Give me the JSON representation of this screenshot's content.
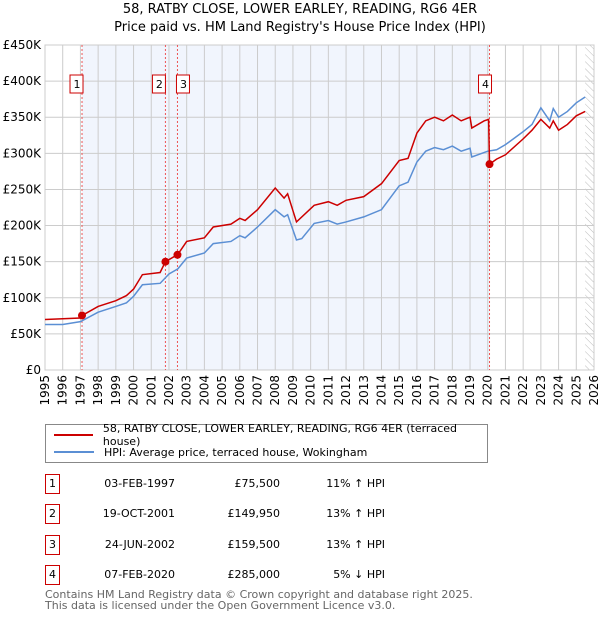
{
  "chart_data": {
    "type": "line",
    "title": "58, RATBY CLOSE, LOWER EARLEY, READING, RG6 4ER",
    "subtitle": "Price paid vs. HM Land Registry's House Price Index (HPI)",
    "xlim": [
      1995,
      2026
    ],
    "ylim": [
      0,
      450000
    ],
    "yticks": [
      {
        "v": 0,
        "l": "£0"
      },
      {
        "v": 50000,
        "l": "£50K"
      },
      {
        "v": 100000,
        "l": "£100K"
      },
      {
        "v": 150000,
        "l": "£150K"
      },
      {
        "v": 200000,
        "l": "£200K"
      },
      {
        "v": 250000,
        "l": "£250K"
      },
      {
        "v": 300000,
        "l": "£300K"
      },
      {
        "v": 350000,
        "l": "£350K"
      },
      {
        "v": 400000,
        "l": "£400K"
      },
      {
        "v": 450000,
        "l": "£450K"
      }
    ],
    "xticks": [
      "1995",
      "1996",
      "1997",
      "1998",
      "1999",
      "2000",
      "2001",
      "2002",
      "2003",
      "2004",
      "2005",
      "2006",
      "2007",
      "2008",
      "2009",
      "2010",
      "2011",
      "2012",
      "2013",
      "2014",
      "2015",
      "2016",
      "2017",
      "2018",
      "2019",
      "2020",
      "2021",
      "2022",
      "2023",
      "2024",
      "2025",
      "2026"
    ],
    "series": [
      {
        "name": "58, RATBY CLOSE, LOWER EARLEY, READING, RG6 4ER (terraced house)",
        "color": "#cc0000",
        "points": [
          [
            1995,
            70
          ],
          [
            1997,
            72
          ],
          [
            1997.1,
            75.5
          ],
          [
            1998,
            88
          ],
          [
            1999,
            96
          ],
          [
            1999.6,
            103
          ],
          [
            2000,
            112
          ],
          [
            2000.5,
            132
          ],
          [
            2001.5,
            135
          ],
          [
            2001.8,
            150
          ],
          [
            2002.5,
            160
          ],
          [
            2003,
            178
          ],
          [
            2004,
            183
          ],
          [
            2004.5,
            198
          ],
          [
            2005.5,
            202
          ],
          [
            2006,
            210
          ],
          [
            2006.3,
            207
          ],
          [
            2007,
            222
          ],
          [
            2008,
            252
          ],
          [
            2008.5,
            238
          ],
          [
            2008.7,
            244
          ],
          [
            2009.2,
            205
          ],
          [
            2010.2,
            228
          ],
          [
            2011,
            233
          ],
          [
            2011.5,
            228
          ],
          [
            2012,
            235
          ],
          [
            2013,
            240
          ],
          [
            2014,
            258
          ],
          [
            2015,
            290
          ],
          [
            2015.5,
            293
          ],
          [
            2016,
            328
          ],
          [
            2016.5,
            345
          ],
          [
            2017,
            350
          ],
          [
            2017.5,
            345
          ],
          [
            2018,
            353
          ],
          [
            2018.5,
            345
          ],
          [
            2019,
            350
          ],
          [
            2019.1,
            335
          ],
          [
            2019.8,
            345
          ],
          [
            2020.05,
            347
          ],
          [
            2020.1,
            285
          ],
          [
            2020.5,
            292
          ],
          [
            2021,
            298
          ],
          [
            2022,
            320
          ],
          [
            2022.5,
            332
          ],
          [
            2023,
            347
          ],
          [
            2023.5,
            335
          ],
          [
            2023.7,
            345
          ],
          [
            2024,
            332
          ],
          [
            2024.5,
            340
          ],
          [
            2025,
            352
          ],
          [
            2025.5,
            358
          ]
        ]
      },
      {
        "name": "HPI: Average price, terraced house, Wokingham",
        "color": "#5b8fd4",
        "points": [
          [
            1995,
            63
          ],
          [
            1996,
            63
          ],
          [
            1997,
            67
          ],
          [
            1998,
            80
          ],
          [
            1999,
            88
          ],
          [
            1999.6,
            93
          ],
          [
            2000,
            102
          ],
          [
            2000.5,
            118
          ],
          [
            2001.5,
            120
          ],
          [
            2002,
            133
          ],
          [
            2002.5,
            140
          ],
          [
            2003,
            155
          ],
          [
            2004,
            162
          ],
          [
            2004.5,
            175
          ],
          [
            2005.5,
            178
          ],
          [
            2006,
            186
          ],
          [
            2006.3,
            183
          ],
          [
            2007,
            198
          ],
          [
            2008,
            222
          ],
          [
            2008.5,
            212
          ],
          [
            2008.7,
            215
          ],
          [
            2009.2,
            180
          ],
          [
            2009.5,
            182
          ],
          [
            2010.2,
            203
          ],
          [
            2011,
            207
          ],
          [
            2011.5,
            202
          ],
          [
            2012,
            205
          ],
          [
            2013,
            212
          ],
          [
            2014,
            222
          ],
          [
            2015,
            255
          ],
          [
            2015.5,
            260
          ],
          [
            2016,
            288
          ],
          [
            2016.5,
            303
          ],
          [
            2017,
            308
          ],
          [
            2017.5,
            305
          ],
          [
            2018,
            310
          ],
          [
            2018.5,
            303
          ],
          [
            2019,
            307
          ],
          [
            2019.1,
            295
          ],
          [
            2020,
            303
          ],
          [
            2020.5,
            305
          ],
          [
            2021,
            312
          ],
          [
            2022,
            330
          ],
          [
            2022.5,
            340
          ],
          [
            2023,
            363
          ],
          [
            2023.5,
            345
          ],
          [
            2023.7,
            362
          ],
          [
            2024,
            350
          ],
          [
            2024.5,
            358
          ],
          [
            2025,
            370
          ],
          [
            2025.5,
            378
          ]
        ]
      }
    ],
    "sales": [
      {
        "n": "1",
        "x": 1997.09,
        "y": 75500
      },
      {
        "n": "2",
        "x": 2001.8,
        "y": 149950
      },
      {
        "n": "3",
        "x": 2002.48,
        "y": 159500
      },
      {
        "n": "4",
        "x": 2020.1,
        "y": 285000
      }
    ],
    "legend_placement": "bottom"
  },
  "header": {
    "title": "58, RATBY CLOSE, LOWER EARLEY, READING, RG6 4ER",
    "subtitle": "Price paid vs. HM Land Registry's House Price Index (HPI)"
  },
  "legend": {
    "property": "58, RATBY CLOSE, LOWER EARLEY, READING, RG6 4ER (terraced house)",
    "hpi": "HPI: Average price, terraced house, Wokingham"
  },
  "transactions": [
    {
      "n": "1",
      "date": "03-FEB-1997",
      "price": "£75,500",
      "hpi": "11% ↑ HPI"
    },
    {
      "n": "2",
      "date": "19-OCT-2001",
      "price": "£149,950",
      "hpi": "13% ↑ HPI"
    },
    {
      "n": "3",
      "date": "24-JUN-2002",
      "price": "£159,500",
      "hpi": "13% ↑ HPI"
    },
    {
      "n": "4",
      "date": "07-FEB-2020",
      "price": "£285,000",
      "hpi": "5% ↓ HPI"
    }
  ],
  "footer": {
    "line1": "Contains HM Land Registry data © Crown copyright and database right 2025.",
    "line2": "This data is licensed under the Open Government Licence v3.0."
  }
}
